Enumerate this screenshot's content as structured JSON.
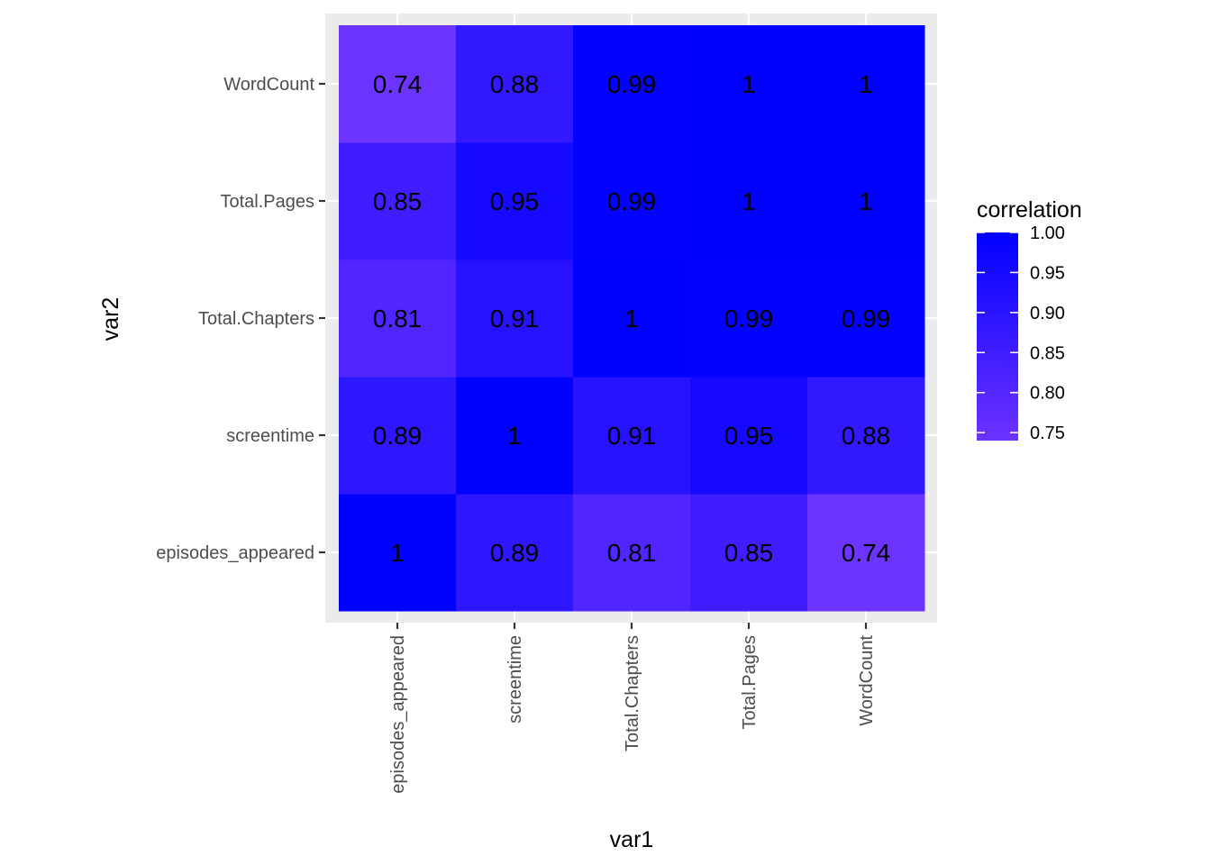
{
  "chart_data": {
    "type": "heatmap",
    "xlabel": "var1",
    "ylabel": "var2",
    "x_categories": [
      "episodes_appeared",
      "screentime",
      "Total.Chapters",
      "Total.Pages",
      "WordCount"
    ],
    "y_categories": [
      "episodes_appeared",
      "screentime",
      "Total.Chapters",
      "Total.Pages",
      "WordCount"
    ],
    "values": [
      [
        1.0,
        0.89,
        0.81,
        0.85,
        0.74
      ],
      [
        0.89,
        1.0,
        0.91,
        0.95,
        0.88
      ],
      [
        0.81,
        0.91,
        1.0,
        0.99,
        0.99
      ],
      [
        0.85,
        0.95,
        0.99,
        1.0,
        1.0
      ],
      [
        0.74,
        0.88,
        0.99,
        1.0,
        1.0
      ]
    ],
    "cell_labels": [
      [
        "1",
        "0.89",
        "0.81",
        "0.85",
        "0.74"
      ],
      [
        "0.89",
        "1",
        "0.91",
        "0.95",
        "0.88"
      ],
      [
        "0.81",
        "0.91",
        "1",
        "0.99",
        "0.99"
      ],
      [
        "0.85",
        "0.95",
        "0.99",
        "1",
        "1"
      ],
      [
        "0.74",
        "0.88",
        "0.99",
        "1",
        "1"
      ]
    ],
    "legend": {
      "title": "correlation",
      "placement": "right",
      "breaks": [
        1.0,
        0.95,
        0.9,
        0.85,
        0.8,
        0.75
      ],
      "break_labels": [
        "1.00",
        "0.95",
        "0.90",
        "0.85",
        "0.80",
        "0.75"
      ],
      "range": [
        0.74,
        1.0
      ]
    },
    "color_low": "#6d33ff",
    "color_high": "#0000ff",
    "panel_background": "#ebebeb",
    "grid": true
  }
}
